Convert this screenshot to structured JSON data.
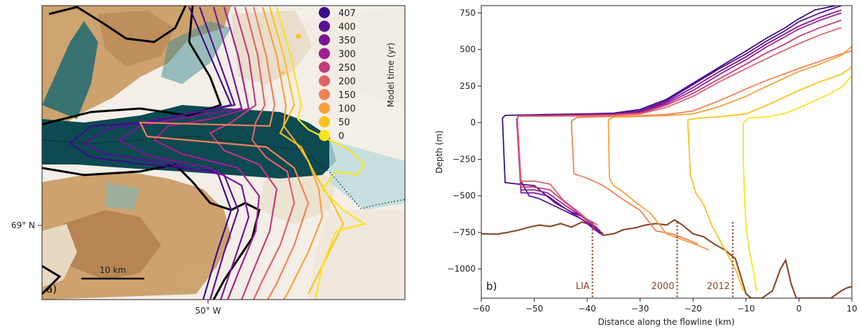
{
  "chart_data": [
    {
      "panel": "a)",
      "type": "map",
      "legend_title": "Model time (yr)",
      "legend": [
        {
          "label": "407",
          "color": "#3d0e8a"
        },
        {
          "label": "400",
          "color": "#580f97"
        },
        {
          "label": "350",
          "color": "#7c1496"
        },
        {
          "label": "300",
          "color": "#a01f90"
        },
        {
          "label": "250",
          "color": "#c43b7e"
        },
        {
          "label": "200",
          "color": "#e0636a"
        },
        {
          "label": "150",
          "color": "#f08358"
        },
        {
          "label": "100",
          "color": "#f8a13a"
        },
        {
          "label": "50",
          "color": "#fbc21c"
        },
        {
          "label": "0",
          "color": "#f9e31f"
        }
      ],
      "lat_label": "69° N",
      "lon_label": "50° W",
      "scale_bar": "10 km"
    },
    {
      "panel": "b)",
      "type": "line",
      "xlabel": "Distance along the flowline (km)",
      "ylabel": "Depth (m)",
      "xlim": [
        -60,
        10
      ],
      "ylim": [
        -1200,
        800
      ],
      "xticks": [
        -60,
        -50,
        -40,
        -30,
        -20,
        -10,
        0,
        10
      ],
      "yticks": [
        750,
        500,
        250,
        0,
        -250,
        -500,
        -750,
        -1000
      ],
      "ytick_labels": [
        "750",
        "500",
        "250",
        "0",
        "−250",
        "−500",
        "−750",
        "−1000"
      ],
      "xtick_labels": [
        "−60",
        "−50",
        "−40",
        "−30",
        "−20",
        "−10",
        "0",
        "10"
      ],
      "annotations": [
        {
          "label": "LIA",
          "x": -39
        },
        {
          "label": "2000",
          "x": -23
        },
        {
          "label": "2012",
          "x": -12.5
        }
      ],
      "bed_color": "#8b4a2b",
      "bed": [
        [
          -60,
          -760
        ],
        [
          -57,
          -762
        ],
        [
          -55,
          -750
        ],
        [
          -53,
          -735
        ],
        [
          -51,
          -715
        ],
        [
          -49,
          -700
        ],
        [
          -47,
          -710
        ],
        [
          -45,
          -690
        ],
        [
          -43,
          -715
        ],
        [
          -41,
          -680
        ],
        [
          -39,
          -700
        ],
        [
          -38,
          -740
        ],
        [
          -37,
          -770
        ],
        [
          -35,
          -760
        ],
        [
          -33,
          -730
        ],
        [
          -31,
          -720
        ],
        [
          -29,
          -700
        ],
        [
          -27,
          -690
        ],
        [
          -25,
          -700
        ],
        [
          -23.5,
          -665
        ],
        [
          -22,
          -700
        ],
        [
          -20,
          -760
        ],
        [
          -18,
          -780
        ],
        [
          -16,
          -830
        ],
        [
          -14,
          -870
        ],
        [
          -12,
          -930
        ],
        [
          -11,
          -1050
        ],
        [
          -10,
          -1170
        ],
        [
          -9,
          -1200
        ],
        [
          -7,
          -1200
        ],
        [
          -5,
          -1150
        ],
        [
          -3.5,
          -1000
        ],
        [
          -2.5,
          -940
        ],
        [
          -1.5,
          -1100
        ],
        [
          -0.5,
          -1200
        ],
        [
          2,
          -1200
        ],
        [
          6,
          -1200
        ],
        [
          8,
          -1150
        ],
        [
          9,
          -1130
        ],
        [
          10,
          -1120
        ]
      ],
      "series": [
        {
          "time": "407",
          "color": "#3d0e8a",
          "values": [
            [
              -39,
              -690
            ],
            [
              -41,
              -640
            ],
            [
              -43,
              -610
            ],
            [
              -46,
              -550
            ],
            [
              -50,
              -430
            ],
            [
              -53,
              -420
            ],
            [
              -55.5,
              -410
            ],
            [
              -56,
              30
            ],
            [
              -55.5,
              50
            ],
            [
              -48,
              55
            ],
            [
              -40,
              60
            ],
            [
              -35,
              65
            ],
            [
              -30,
              90
            ],
            [
              -25,
              160
            ],
            [
              -20,
              270
            ],
            [
              -15,
              380
            ],
            [
              -10,
              490
            ],
            [
              -6,
              580
            ],
            [
              -3,
              640
            ],
            [
              0,
              710
            ],
            [
              3,
              770
            ],
            [
              7,
              800
            ]
          ]
        },
        {
          "time": "400",
          "color": "#580f97",
          "values": [
            [
              -37,
              -760
            ],
            [
              -38.5,
              -720
            ],
            [
              -41,
              -660
            ],
            [
              -45,
              -590
            ],
            [
              -49,
              -520
            ],
            [
              -51,
              -500
            ],
            [
              -52.5,
              -400
            ],
            [
              -53.2,
              20
            ],
            [
              -53,
              45
            ],
            [
              -48,
              50
            ],
            [
              -40,
              55
            ],
            [
              -35,
              60
            ],
            [
              -30,
              80
            ],
            [
              -25,
              150
            ],
            [
              -20,
              260
            ],
            [
              -15,
              370
            ],
            [
              -10,
              470
            ],
            [
              -6,
              560
            ],
            [
              -3,
              620
            ],
            [
              0,
              690
            ],
            [
              4,
              750
            ],
            [
              8,
              800
            ]
          ]
        },
        {
          "time": "350",
          "color": "#7c1496",
          "values": [
            [
              -37.5,
              -760
            ],
            [
              -39,
              -720
            ],
            [
              -41,
              -660
            ],
            [
              -44,
              -590
            ],
            [
              -47.5,
              -500
            ],
            [
              -50,
              -480
            ],
            [
              -52.5,
              -480
            ],
            [
              -53.3,
              25
            ],
            [
              -53,
              45
            ],
            [
              -48,
              50
            ],
            [
              -40,
              55
            ],
            [
              -35,
              60
            ],
            [
              -30,
              75
            ],
            [
              -25,
              140
            ],
            [
              -20,
              240
            ],
            [
              -15,
              350
            ],
            [
              -10,
              450
            ],
            [
              -6,
              540
            ],
            [
              -3,
              600
            ],
            [
              0,
              660
            ],
            [
              4,
              720
            ],
            [
              8,
              770
            ]
          ]
        },
        {
          "time": "300",
          "color": "#a01f90",
          "values": [
            [
              -37.5,
              -740
            ],
            [
              -39,
              -700
            ],
            [
              -41,
              -640
            ],
            [
              -44,
              -570
            ],
            [
              -47.5,
              -480
            ],
            [
              -50,
              -460
            ],
            [
              -52.5,
              -460
            ],
            [
              -53.2,
              25
            ],
            [
              -53,
              45
            ],
            [
              -48,
              48
            ],
            [
              -40,
              52
            ],
            [
              -35,
              56
            ],
            [
              -30,
              70
            ],
            [
              -25,
              130
            ],
            [
              -20,
              220
            ],
            [
              -15,
              330
            ],
            [
              -10,
              430
            ],
            [
              -6,
              520
            ],
            [
              -3,
              580
            ],
            [
              0,
              640
            ],
            [
              4,
              700
            ],
            [
              8,
              750
            ]
          ]
        },
        {
          "time": "250",
          "color": "#c43b7e",
          "values": [
            [
              -38,
              -720
            ],
            [
              -39.5,
              -680
            ],
            [
              -41.5,
              -620
            ],
            [
              -44,
              -550
            ],
            [
              -47,
              -460
            ],
            [
              -50,
              -440
            ],
            [
              -52.5,
              -440
            ],
            [
              -53.2,
              25
            ],
            [
              -53,
              45
            ],
            [
              -48,
              46
            ],
            [
              -40,
              50
            ],
            [
              -35,
              54
            ],
            [
              -30,
              65
            ],
            [
              -25,
              120
            ],
            [
              -20,
              200
            ],
            [
              -15,
              300
            ],
            [
              -10,
              400
            ],
            [
              -6,
              480
            ],
            [
              -3,
              530
            ],
            [
              0,
              590
            ],
            [
              4,
              650
            ],
            [
              8,
              700
            ]
          ]
        },
        {
          "time": "200",
          "color": "#e0636a",
          "values": [
            [
              -38,
              -700
            ],
            [
              -40,
              -660
            ],
            [
              -42,
              -600
            ],
            [
              -44.5,
              -530
            ],
            [
              -47,
              -420
            ],
            [
              -50,
              -400
            ],
            [
              -52.5,
              -400
            ],
            [
              -53.2,
              25
            ],
            [
              -53,
              45
            ],
            [
              -48,
              44
            ],
            [
              -40,
              46
            ],
            [
              -35,
              50
            ],
            [
              -30,
              60
            ],
            [
              -25,
              105
            ],
            [
              -20,
              180
            ],
            [
              -15,
              280
            ],
            [
              -10,
              370
            ],
            [
              -6,
              440
            ],
            [
              -3,
              490
            ],
            [
              0,
              540
            ],
            [
              4,
              600
            ],
            [
              8,
              650
            ]
          ]
        },
        {
          "time": "150",
          "color": "#f08358",
          "values": [
            [
              -19,
              -830
            ],
            [
              -21,
              -800
            ],
            [
              -24,
              -760
            ],
            [
              -27,
              -740
            ],
            [
              -30,
              -600
            ],
            [
              -33,
              -530
            ],
            [
              -35,
              -480
            ],
            [
              -37,
              -430
            ],
            [
              -40,
              -380
            ],
            [
              -42.5,
              -350
            ],
            [
              -43,
              10
            ],
            [
              -42,
              35
            ],
            [
              -38,
              40
            ],
            [
              -32,
              45
            ],
            [
              -25,
              55
            ],
            [
              -20,
              80
            ],
            [
              -15,
              150
            ],
            [
              -10,
              230
            ],
            [
              -6,
              290
            ],
            [
              -3,
              330
            ],
            [
              0,
              370
            ],
            [
              4,
              420
            ],
            [
              8,
              470
            ],
            [
              10,
              490
            ]
          ]
        },
        {
          "time": "100",
          "color": "#f8a13a",
          "values": [
            [
              -17,
              -870
            ],
            [
              -19,
              -840
            ],
            [
              -22,
              -800
            ],
            [
              -25,
              -760
            ],
            [
              -28,
              -620
            ],
            [
              -31,
              -540
            ],
            [
              -33,
              -480
            ],
            [
              -35,
              -430
            ],
            [
              -35.8,
              -380
            ],
            [
              -36,
              20
            ],
            [
              -35,
              38
            ],
            [
              -30,
              42
            ],
            [
              -25,
              48
            ],
            [
              -20,
              60
            ],
            [
              -15,
              110
            ],
            [
              -10,
              180
            ],
            [
              -6,
              250
            ],
            [
              -3,
              300
            ],
            [
              0,
              350
            ],
            [
              4,
              400
            ],
            [
              8,
              460
            ],
            [
              10,
              520
            ]
          ]
        },
        {
          "time": "50",
          "color": "#fbc21c",
          "values": [
            [
              -10.5,
              -1150
            ],
            [
              -12,
              -1000
            ],
            [
              -13.5,
              -900
            ],
            [
              -15,
              -800
            ],
            [
              -16.5,
              -700
            ],
            [
              -18,
              -560
            ],
            [
              -19.5,
              -480
            ],
            [
              -20.5,
              -360
            ],
            [
              -21,
              20
            ],
            [
              -19,
              30
            ],
            [
              -15,
              40
            ],
            [
              -10,
              60
            ],
            [
              -6,
              120
            ],
            [
              -3,
              170
            ],
            [
              0,
              220
            ],
            [
              4,
              280
            ],
            [
              8,
              330
            ],
            [
              10,
              380
            ]
          ]
        },
        {
          "time": "0",
          "color": "#f9e31f",
          "values": [
            [
              -8,
              -1150
            ],
            [
              -8.7,
              -1000
            ],
            [
              -9.5,
              -850
            ],
            [
              -10,
              -700
            ],
            [
              -10.3,
              -500
            ],
            [
              -10.5,
              -250
            ],
            [
              -10.5,
              0
            ],
            [
              -9.5,
              30
            ],
            [
              -6,
              40
            ],
            [
              -3,
              60
            ],
            [
              0,
              100
            ],
            [
              3,
              150
            ],
            [
              6,
              200
            ],
            [
              8,
              240
            ],
            [
              10,
              320
            ]
          ]
        }
      ]
    }
  ]
}
